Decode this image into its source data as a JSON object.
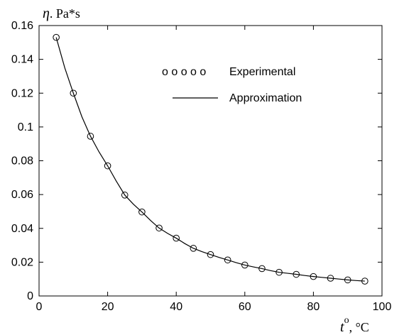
{
  "chart_data": {
    "type": "line",
    "title": "",
    "xlabel": {
      "symbol": "t",
      "superscript": "o",
      "unit": ", °C"
    },
    "ylabel": {
      "symbol": "η",
      "unit": ". Pa*s"
    },
    "xlim": [
      0,
      100
    ],
    "ylim": [
      0,
      0.16
    ],
    "xticks": [
      0,
      20,
      40,
      60,
      80,
      100
    ],
    "xtick_labels": [
      "0",
      "20",
      "40",
      "60",
      "80",
      "100"
    ],
    "yticks": [
      0,
      0.02,
      0.04,
      0.06,
      0.08,
      0.1,
      0.12,
      0.14,
      0.16
    ],
    "ytick_labels": [
      "0",
      "0.02",
      "0.04",
      "0.06",
      "0.08",
      "0.1",
      "0.12",
      "0.14",
      "0.16"
    ],
    "grid": false,
    "legend_position": "top-right",
    "series": [
      {
        "name": "Experimental",
        "legend_marker": "o o o o o",
        "marker": "circle",
        "line": false,
        "x": [
          5,
          10,
          15,
          20,
          25,
          30,
          35,
          40,
          45,
          50,
          55,
          60,
          65,
          70,
          75,
          80,
          85,
          90,
          95
        ],
        "y": [
          0.153,
          0.12,
          0.0945,
          0.077,
          0.0597,
          0.0497,
          0.0402,
          0.0342,
          0.0282,
          0.0245,
          0.0213,
          0.0183,
          0.0162,
          0.014,
          0.0128,
          0.0115,
          0.0105,
          0.0095,
          0.0088
        ]
      },
      {
        "name": "Approximation",
        "marker": "none",
        "line": true,
        "x": [
          5,
          7.5,
          10,
          12.5,
          15,
          17.5,
          20,
          22.5,
          25,
          27.5,
          30,
          32.5,
          35,
          37.5,
          40,
          42.5,
          45,
          47.5,
          50,
          52.5,
          55,
          57.5,
          60,
          62.5,
          65,
          67.5,
          70,
          72.5,
          75,
          77.5,
          80,
          82.5,
          85,
          87.5,
          90,
          92.5,
          95
        ],
        "y": [
          0.153,
          0.135,
          0.12,
          0.106,
          0.0945,
          0.0852,
          0.077,
          0.068,
          0.0597,
          0.0543,
          0.0497,
          0.0447,
          0.0402,
          0.037,
          0.0342,
          0.031,
          0.0282,
          0.0262,
          0.0245,
          0.0228,
          0.0213,
          0.0197,
          0.0183,
          0.0172,
          0.0162,
          0.015,
          0.014,
          0.0134,
          0.0128,
          0.0121,
          0.0115,
          0.011,
          0.0105,
          0.01,
          0.0095,
          0.0091,
          0.0088
        ]
      }
    ]
  }
}
